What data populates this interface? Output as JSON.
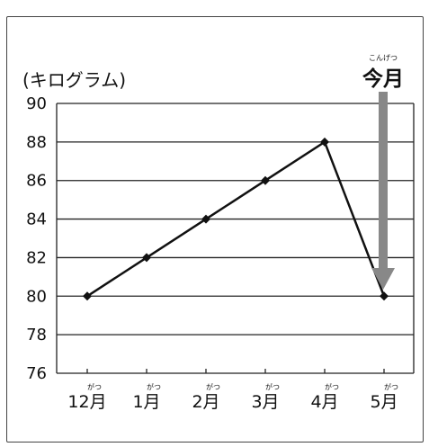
{
  "chart_data": {
    "type": "line",
    "ylabel": "(キログラム)",
    "ylim": [
      76,
      90
    ],
    "yticks": [
      "90",
      "88",
      "86",
      "84",
      "82",
      "80",
      "78",
      "76"
    ],
    "categories": [
      "12月",
      "1月",
      "2月",
      "3月",
      "4月",
      "5月"
    ],
    "furigana": [
      "がつ",
      "がつ",
      "がつ",
      "がつ",
      "がつ",
      "がつ"
    ],
    "values": [
      80,
      82,
      84,
      86,
      88,
      80
    ],
    "grid": true,
    "annotation": {
      "text": "今月",
      "reading": "こんげつ",
      "points_to": "5月",
      "arrow_color": "#888888"
    },
    "line_color": "#111111"
  }
}
